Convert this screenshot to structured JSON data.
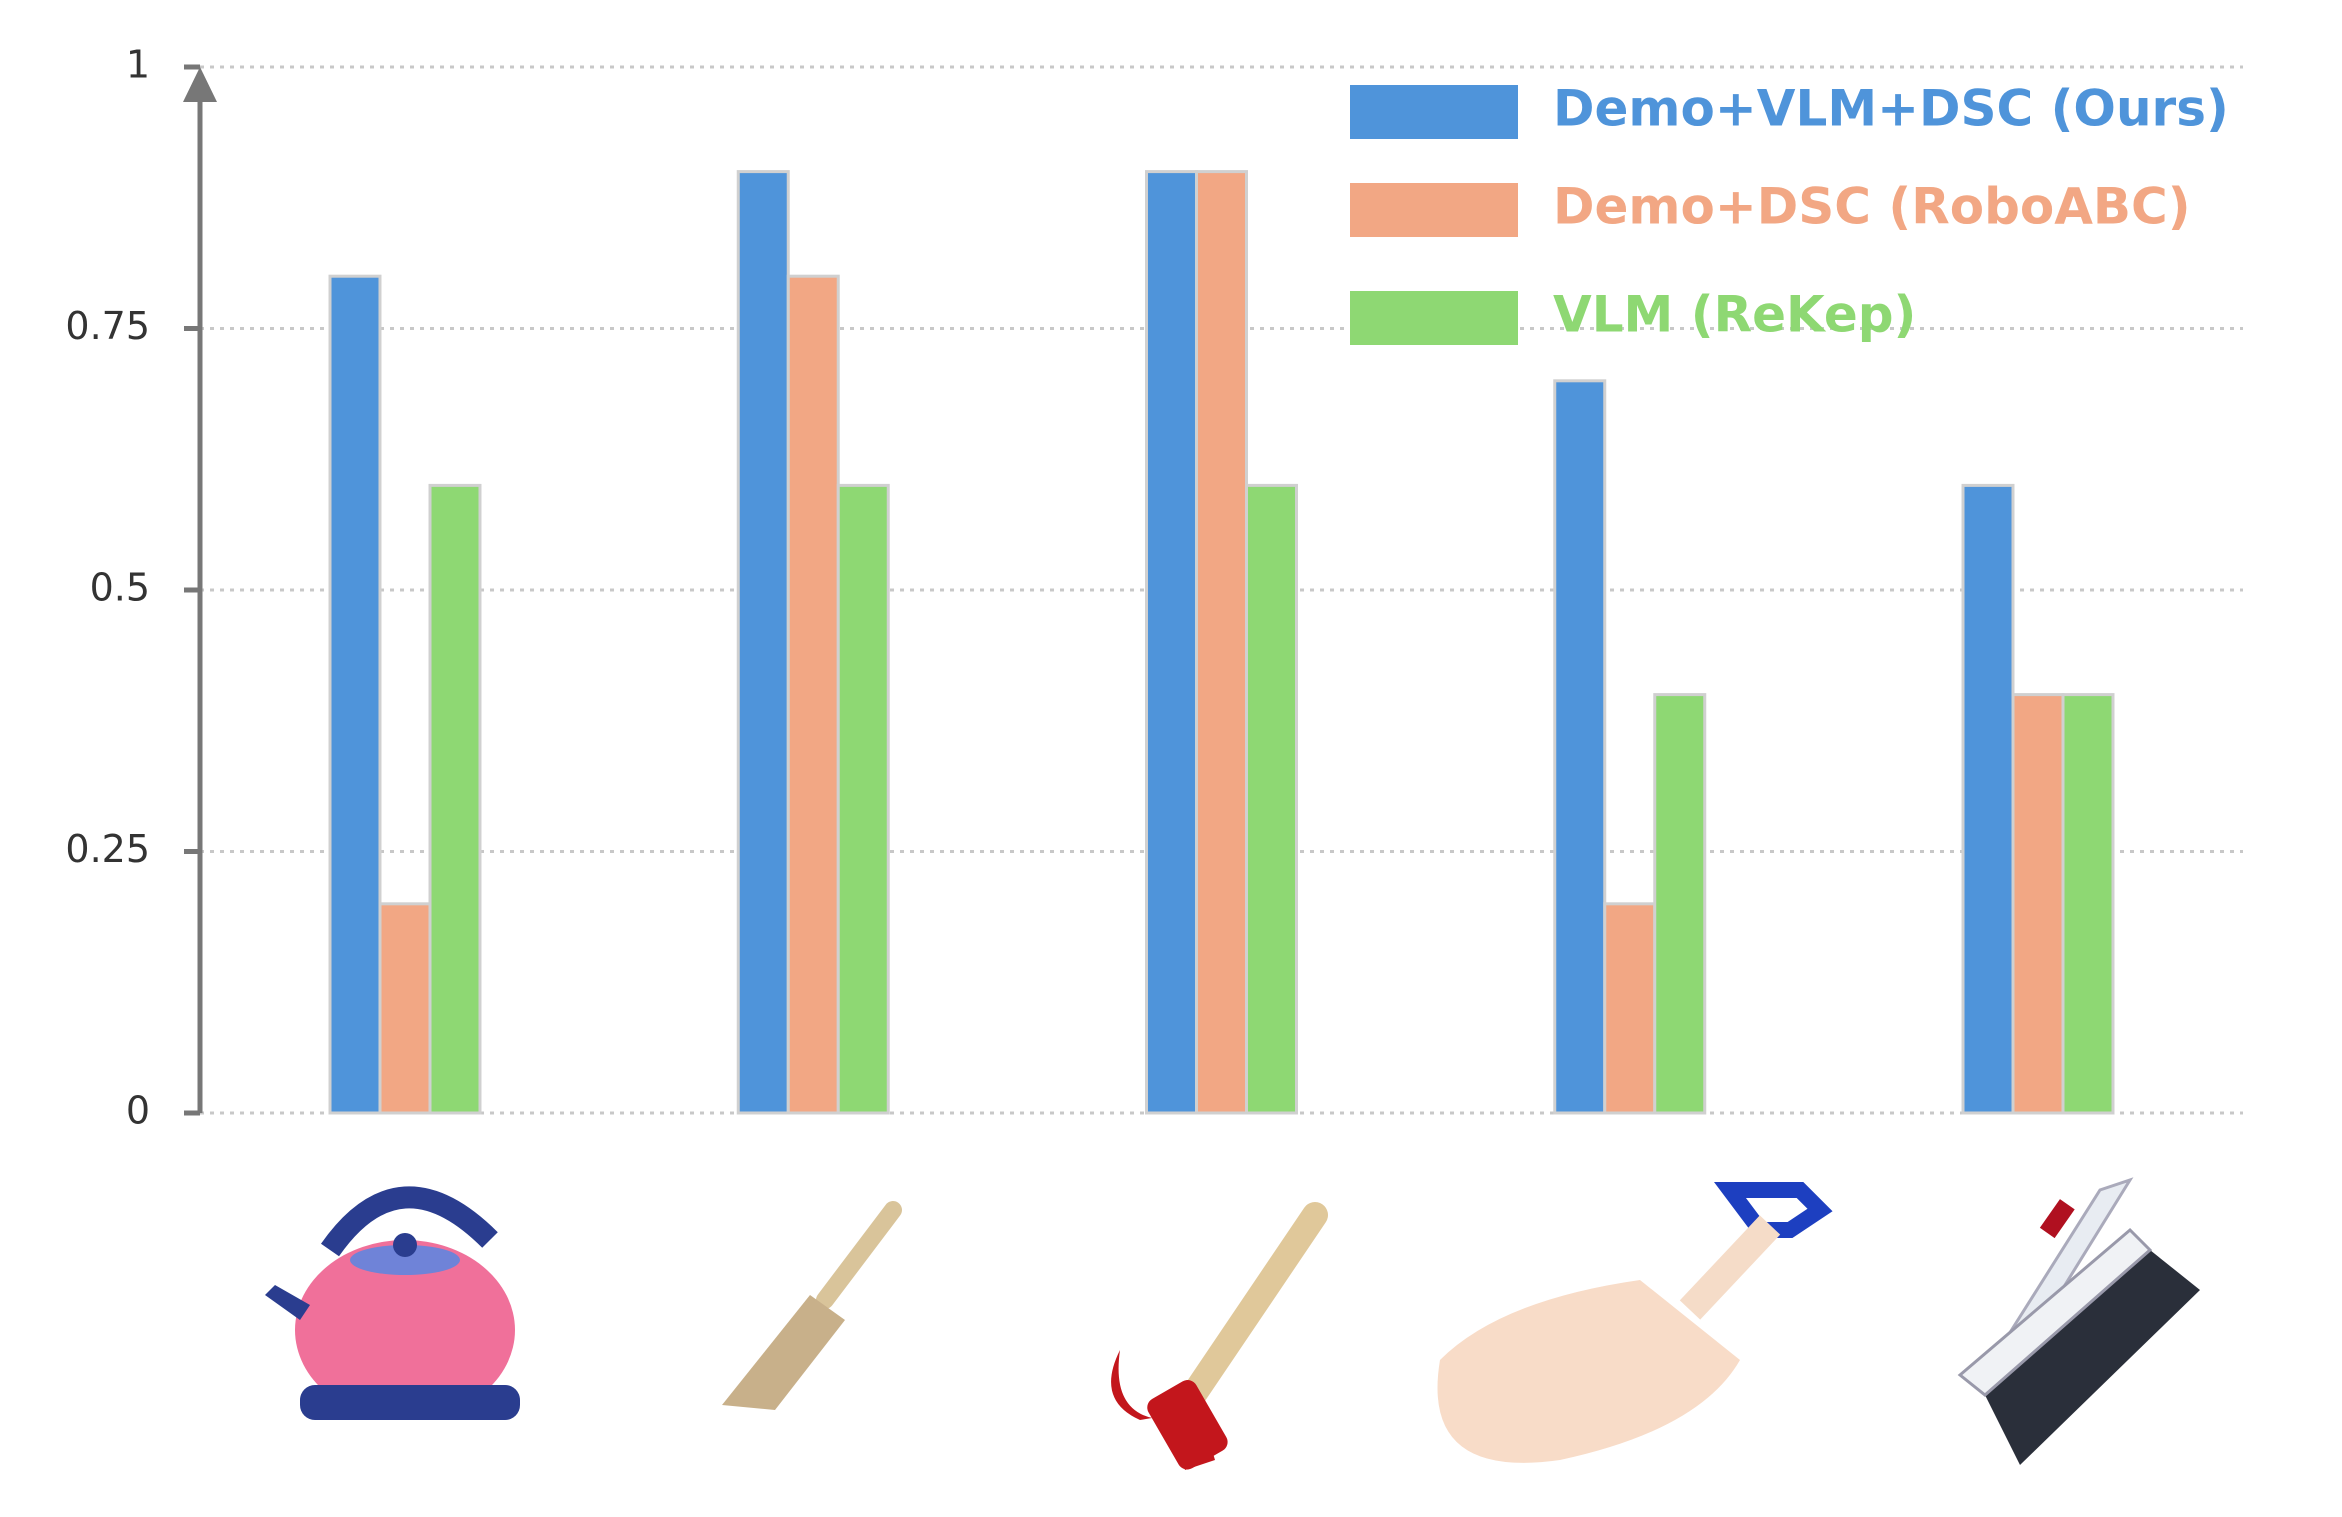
{
  "chart_data": {
    "type": "bar",
    "categories": [
      null,
      null,
      null,
      null,
      null
    ],
    "series": [
      {
        "name": "Demo+VLM+DSC (Ours)",
        "color": "#4f94da",
        "values": [
          0.8,
          0.9,
          0.9,
          0.7,
          0.6
        ]
      },
      {
        "name": "Demo+DSC (RoboABC)",
        "color": "#f2a784",
        "values": [
          0.2,
          0.8,
          0.9,
          0.2,
          0.4
        ]
      },
      {
        "name": "VLM (ReKep)",
        "color": "#8ed873",
        "values": [
          0.6,
          0.6,
          0.6,
          0.4,
          0.4
        ]
      }
    ],
    "ylim": [
      0,
      1
    ],
    "yticks": [
      0,
      0.25,
      0.5,
      0.75,
      1
    ],
    "grid": true,
    "legend": "upper-right"
  }
}
